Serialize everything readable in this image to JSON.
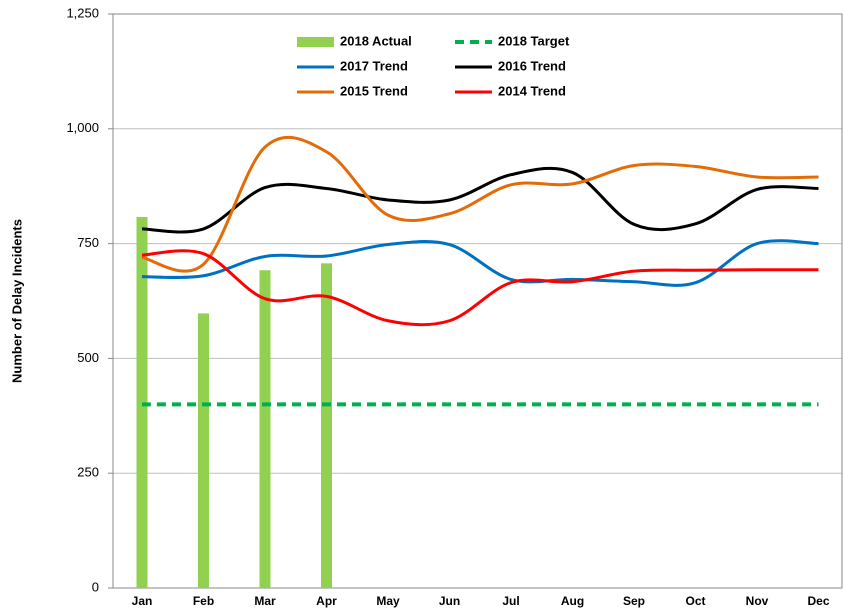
{
  "chart_data": {
    "type": "combo",
    "y_label": "Number of Delay Incidents",
    "categories": [
      "Jan",
      "Feb",
      "Mar",
      "Apr",
      "May",
      "Jun",
      "Jul",
      "Aug",
      "Sep",
      "Oct",
      "Nov",
      "Dec"
    ],
    "ylim": [
      0,
      1250
    ],
    "yticks": [
      0,
      250,
      500,
      {
        "value": 750,
        "label": "750"
      },
      {
        "value": 1000,
        "label": "1,000"
      },
      {
        "value": 1250,
        "label": "1,250"
      }
    ],
    "grid": true,
    "smooth": true,
    "series": [
      {
        "name": "2018 Actual",
        "type": "bar",
        "color": "#92d050",
        "values": [
          808,
          598,
          692,
          707,
          null,
          null,
          null,
          null,
          null,
          null,
          null,
          null
        ]
      },
      {
        "name": "2018 Target",
        "type": "line",
        "dashed": true,
        "color": "#00b050",
        "values": [
          400,
          400,
          400,
          400,
          400,
          400,
          400,
          400,
          400,
          400,
          400,
          400
        ]
      },
      {
        "name": "2017 Trend",
        "type": "line",
        "color": "#0070c0",
        "values": [
          678,
          680,
          722,
          723,
          748,
          748,
          672,
          672,
          667,
          665,
          750,
          750
        ]
      },
      {
        "name": "2016 Trend",
        "type": "line",
        "color": "#000000",
        "values": [
          782,
          782,
          872,
          870,
          845,
          845,
          900,
          905,
          792,
          793,
          868,
          870
        ]
      },
      {
        "name": "2015 Trend",
        "type": "line",
        "color": "#e36c09",
        "values": [
          720,
          705,
          960,
          950,
          812,
          815,
          878,
          880,
          920,
          918,
          895,
          895
        ]
      },
      {
        "name": "2014 Trend",
        "type": "line",
        "color": "#ff0000",
        "values": [
          725,
          728,
          630,
          635,
          582,
          582,
          665,
          667,
          690,
          692,
          693,
          693
        ]
      }
    ]
  }
}
